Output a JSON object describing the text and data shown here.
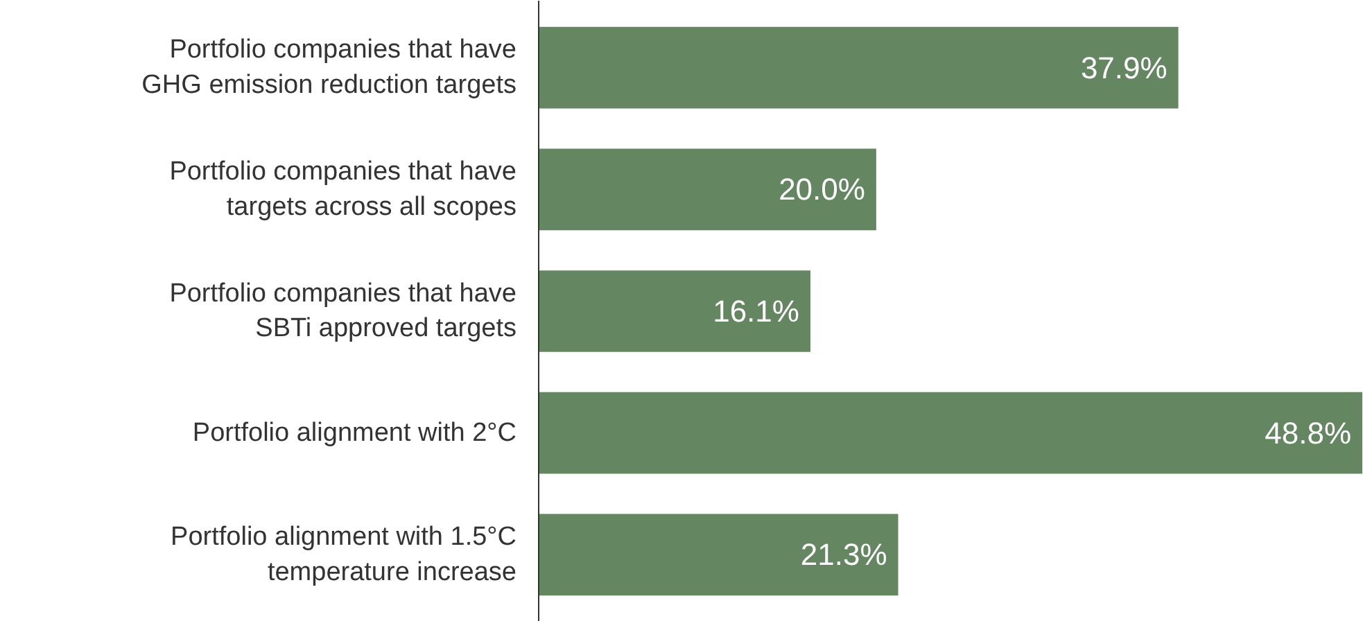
{
  "chart_data": {
    "type": "bar",
    "orientation": "horizontal",
    "categories": [
      "Portfolio companies that have GHG emission reduction targets",
      "Portfolio companies that have targets across all scopes",
      "Portfolio companies that have SBTi approved targets",
      "Portfolio alignment with 2°C",
      "Portfolio alignment with 1.5°C temperature increase"
    ],
    "values": [
      37.9,
      20.0,
      16.1,
      48.8,
      21.3
    ],
    "value_labels": [
      "37.9%",
      "20.0%",
      "16.1%",
      "48.8%",
      "21.3%"
    ],
    "color": "#648762",
    "grid": false
  }
}
